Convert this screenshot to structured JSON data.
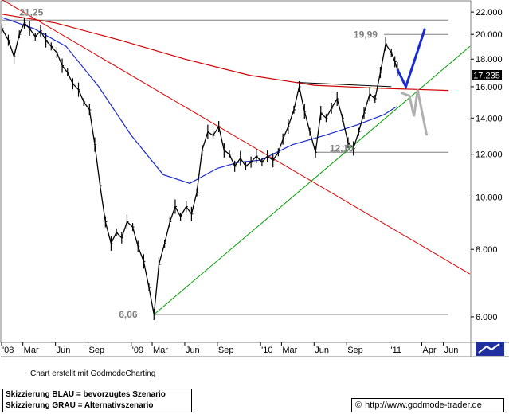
{
  "credit": "Chart erstellt mit GodmodeCharting",
  "legend": {
    "line1": "Skizzierung BLAU = bevorzugtes Szenario",
    "line2": "Skizzierung GRAU = Alternativszenario"
  },
  "website": {
    "copyright": "©",
    "url": "http://www.godmode-trader.de"
  },
  "current_price_label": "17.235",
  "chart_data": {
    "type": "line",
    "title": "",
    "xlabel": "",
    "ylabel": "",
    "scale": "log",
    "ylim": [
      5.4,
      23.0
    ],
    "y_ticks": [
      6,
      8,
      10,
      12,
      14,
      16,
      18,
      20,
      22
    ],
    "y_tick_labels": [
      "6.000",
      "8.000",
      "10.000",
      "12.000",
      "14.000",
      "16.000",
      "18.000",
      "20.000",
      "22.000"
    ],
    "x_range": [
      "2008-01-01",
      "2011-08-15"
    ],
    "x_ticks": [
      {
        "date": "2008-01-01",
        "label": "'08"
      },
      {
        "date": "2008-03-01",
        "label": "Mar"
      },
      {
        "date": "2008-06-01",
        "label": "Jun"
      },
      {
        "date": "2008-09-01",
        "label": "Sep"
      },
      {
        "date": "2009-01-01",
        "label": "'09"
      },
      {
        "date": "2009-03-01",
        "label": "Mar"
      },
      {
        "date": "2009-06-01",
        "label": "Jun"
      },
      {
        "date": "2009-09-01",
        "label": "Sep"
      },
      {
        "date": "2010-01-01",
        "label": "'10"
      },
      {
        "date": "2010-03-01",
        "label": "Mar"
      },
      {
        "date": "2010-06-01",
        "label": "Jun"
      },
      {
        "date": "2010-09-01",
        "label": "Sep"
      },
      {
        "date": "2011-01-01",
        "label": "'11"
      },
      {
        "date": "2011-04-01",
        "label": "Apr"
      },
      {
        "date": "2011-06-01",
        "label": "Jun"
      }
    ],
    "grid": false,
    "annotations": [
      {
        "text": "21,25",
        "date": "2008-02-20",
        "value": 21.25
      },
      {
        "text": "19,99",
        "date": "2010-12-15",
        "value": 19.99
      },
      {
        "text": "12,10",
        "date": "2010-07-15",
        "value": 12.1
      },
      {
        "text": "6,06",
        "date": "2009-03-06",
        "value": 6.06
      }
    ],
    "price": [
      [
        "2008-01-02",
        20.5
      ],
      [
        "2008-01-20",
        19.5
      ],
      [
        "2008-02-05",
        18.2
      ],
      [
        "2008-02-20",
        20.0
      ],
      [
        "2008-03-05",
        21.0
      ],
      [
        "2008-03-20",
        20.5
      ],
      [
        "2008-04-05",
        19.8
      ],
      [
        "2008-04-20",
        20.3
      ],
      [
        "2008-05-05",
        19.5
      ],
      [
        "2008-05-20",
        19.0
      ],
      [
        "2008-06-05",
        18.5
      ],
      [
        "2008-06-20",
        17.5
      ],
      [
        "2008-07-05",
        17.0
      ],
      [
        "2008-07-20",
        16.2
      ],
      [
        "2008-08-05",
        15.8
      ],
      [
        "2008-08-20",
        15.0
      ],
      [
        "2008-09-05",
        14.5
      ],
      [
        "2008-09-20",
        12.5
      ],
      [
        "2008-10-05",
        10.5
      ],
      [
        "2008-10-20",
        9.0
      ],
      [
        "2008-11-05",
        8.2
      ],
      [
        "2008-11-20",
        8.6
      ],
      [
        "2008-12-05",
        8.4
      ],
      [
        "2008-12-20",
        9.0
      ],
      [
        "2009-01-05",
        8.8
      ],
      [
        "2009-01-20",
        8.1
      ],
      [
        "2009-02-05",
        7.6
      ],
      [
        "2009-02-20",
        6.8
      ],
      [
        "2009-03-06",
        6.06
      ],
      [
        "2009-03-20",
        7.5
      ],
      [
        "2009-04-05",
        8.2
      ],
      [
        "2009-04-20",
        9.0
      ],
      [
        "2009-05-05",
        9.6
      ],
      [
        "2009-05-20",
        9.2
      ],
      [
        "2009-06-05",
        9.6
      ],
      [
        "2009-06-20",
        9.3
      ],
      [
        "2009-07-05",
        10.2
      ],
      [
        "2009-07-20",
        12.2
      ],
      [
        "2009-08-05",
        13.2
      ],
      [
        "2009-08-20",
        13.0
      ],
      [
        "2009-09-05",
        13.5
      ],
      [
        "2009-09-20",
        12.2
      ],
      [
        "2009-10-05",
        12.0
      ],
      [
        "2009-10-20",
        11.4
      ],
      [
        "2009-11-05",
        11.8
      ],
      [
        "2009-11-20",
        11.4
      ],
      [
        "2009-12-05",
        11.6
      ],
      [
        "2009-12-20",
        11.9
      ],
      [
        "2010-01-05",
        11.6
      ],
      [
        "2010-01-20",
        11.9
      ],
      [
        "2010-02-05",
        11.7
      ],
      [
        "2010-02-20",
        12.1
      ],
      [
        "2010-03-05",
        12.8
      ],
      [
        "2010-03-20",
        13.5
      ],
      [
        "2010-04-05",
        14.5
      ],
      [
        "2010-04-20",
        16.0
      ],
      [
        "2010-05-05",
        14.4
      ],
      [
        "2010-05-20",
        13.2
      ],
      [
        "2010-06-05",
        12.1
      ],
      [
        "2010-06-20",
        14.3
      ],
      [
        "2010-07-05",
        14.0
      ],
      [
        "2010-07-20",
        14.6
      ],
      [
        "2010-08-05",
        15.2
      ],
      [
        "2010-08-20",
        14.0
      ],
      [
        "2010-09-05",
        12.6
      ],
      [
        "2010-09-20",
        12.3
      ],
      [
        "2010-10-05",
        13.2
      ],
      [
        "2010-10-20",
        14.3
      ],
      [
        "2010-11-05",
        15.5
      ],
      [
        "2010-11-20",
        15.2
      ],
      [
        "2010-12-05",
        17.0
      ],
      [
        "2010-12-20",
        19.2
      ],
      [
        "2011-01-05",
        18.5
      ],
      [
        "2011-01-15",
        17.8
      ],
      [
        "2011-01-22",
        17.235
      ]
    ],
    "ma_red": [
      [
        "2008-01-02",
        21.8
      ],
      [
        "2008-06-01",
        21.0
      ],
      [
        "2008-12-01",
        19.5
      ],
      [
        "2009-06-01",
        18.0
      ],
      [
        "2009-12-01",
        16.8
      ],
      [
        "2010-06-01",
        16.1
      ],
      [
        "2010-12-01",
        15.9
      ],
      [
        "2011-06-15",
        15.75
      ]
    ],
    "ma_blue": [
      [
        "2008-01-02",
        21.5
      ],
      [
        "2008-04-01",
        20.5
      ],
      [
        "2008-07-01",
        19.0
      ],
      [
        "2008-10-01",
        16.0
      ],
      [
        "2009-01-01",
        13.0
      ],
      [
        "2009-04-01",
        11.0
      ],
      [
        "2009-06-15",
        10.6
      ],
      [
        "2009-09-01",
        11.3
      ],
      [
        "2009-11-01",
        11.6
      ],
      [
        "2010-01-01",
        11.7
      ],
      [
        "2010-04-01",
        12.5
      ],
      [
        "2010-07-01",
        13.0
      ],
      [
        "2010-10-01",
        13.6
      ],
      [
        "2010-12-15",
        14.2
      ],
      [
        "2011-01-20",
        14.7
      ]
    ],
    "trend_green": [
      [
        "2009-03-06",
        6.06
      ],
      [
        "2011-08-15",
        19.0
      ]
    ],
    "trend_red": [
      [
        "2008-01-02",
        23.2
      ],
      [
        "2011-08-15",
        7.2
      ]
    ],
    "resistance_upper": [
      [
        "2008-01-02",
        21.25
      ],
      [
        "2011-06-15",
        21.25
      ]
    ],
    "resistance_1999": [
      [
        "2010-12-15",
        19.99
      ],
      [
        "2011-06-15",
        19.99
      ]
    ],
    "support_1210": [
      [
        "2010-06-05",
        12.1
      ],
      [
        "2011-06-15",
        12.1
      ]
    ],
    "support_606": [
      [
        "2009-03-06",
        6.06
      ],
      [
        "2011-06-15",
        6.06
      ]
    ],
    "range_top": [
      [
        "2010-04-15",
        16.3
      ],
      [
        "2011-01-05",
        16.0
      ]
    ],
    "scenario_blue": [
      [
        "2011-01-22",
        17.235
      ],
      [
        "2011-02-15",
        16.0
      ],
      [
        "2011-04-10",
        20.5
      ]
    ],
    "scenario_gray": [
      [
        "2011-02-01",
        15.6
      ],
      [
        "2011-02-25",
        15.4
      ],
      [
        "2011-03-10",
        14.1
      ],
      [
        "2011-03-20",
        15.8
      ],
      [
        "2011-04-15",
        13.0
      ]
    ]
  }
}
